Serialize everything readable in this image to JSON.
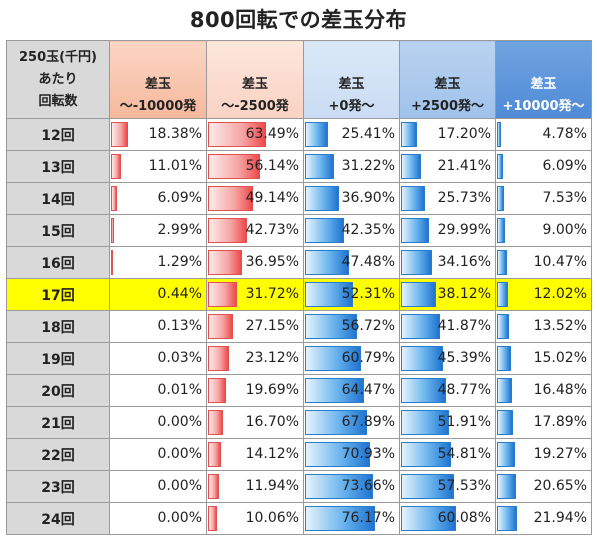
{
  "title": "800回転での差玉分布",
  "colors": {
    "negative_bar": "#ee4a4a",
    "positive_bar": "#1f74d0",
    "highlight_row": "#ffff00",
    "header_gray": "#d9d9d9"
  },
  "chart_data": {
    "type": "table",
    "title": "800回転での差玉分布",
    "row_header": [
      "250玉(千円)",
      "あたり",
      "回転数"
    ],
    "columns": [
      {
        "line1": "差玉",
        "line2": "～-10000発",
        "bar": "red"
      },
      {
        "line1": "差玉",
        "line2": "～-2500発",
        "bar": "red"
      },
      {
        "line1": "差玉",
        "line2": "+0発～",
        "bar": "blue"
      },
      {
        "line1": "差玉",
        "line2": "+2500発～",
        "bar": "blue"
      },
      {
        "line1": "差玉",
        "line2": "+10000発～",
        "bar": "blue"
      }
    ],
    "highlighted_row": "17回",
    "rows": [
      {
        "label": "12回",
        "values": [
          18.38,
          63.49,
          25.41,
          17.2,
          4.78
        ],
        "display": [
          "18.38%",
          "63.49%",
          "25.41%",
          "17.20%",
          "4.78%"
        ]
      },
      {
        "label": "13回",
        "values": [
          11.01,
          56.14,
          31.22,
          21.41,
          6.09
        ],
        "display": [
          "11.01%",
          "56.14%",
          "31.22%",
          "21.41%",
          "6.09%"
        ]
      },
      {
        "label": "14回",
        "values": [
          6.09,
          49.14,
          36.9,
          25.73,
          7.53
        ],
        "display": [
          "6.09%",
          "49.14%",
          "36.90%",
          "25.73%",
          "7.53%"
        ]
      },
      {
        "label": "15回",
        "values": [
          2.99,
          42.73,
          42.35,
          29.99,
          9.0
        ],
        "display": [
          "2.99%",
          "42.73%",
          "42.35%",
          "29.99%",
          "9.00%"
        ]
      },
      {
        "label": "16回",
        "values": [
          1.29,
          36.95,
          47.48,
          34.16,
          10.47
        ],
        "display": [
          "1.29%",
          "36.95%",
          "47.48%",
          "34.16%",
          "10.47%"
        ]
      },
      {
        "label": "17回",
        "values": [
          0.44,
          31.72,
          52.31,
          38.12,
          12.02
        ],
        "display": [
          "0.44%",
          "31.72%",
          "52.31%",
          "38.12%",
          "12.02%"
        ]
      },
      {
        "label": "18回",
        "values": [
          0.13,
          27.15,
          56.72,
          41.87,
          13.52
        ],
        "display": [
          "0.13%",
          "27.15%",
          "56.72%",
          "41.87%",
          "13.52%"
        ]
      },
      {
        "label": "19回",
        "values": [
          0.03,
          23.12,
          60.79,
          45.39,
          15.02
        ],
        "display": [
          "0.03%",
          "23.12%",
          "60.79%",
          "45.39%",
          "15.02%"
        ]
      },
      {
        "label": "20回",
        "values": [
          0.01,
          19.69,
          64.47,
          48.77,
          16.48
        ],
        "display": [
          "0.01%",
          "19.69%",
          "64.47%",
          "48.77%",
          "16.48%"
        ]
      },
      {
        "label": "21回",
        "values": [
          0.0,
          16.7,
          67.89,
          51.91,
          17.89
        ],
        "display": [
          "0.00%",
          "16.70%",
          "67.89%",
          "51.91%",
          "17.89%"
        ]
      },
      {
        "label": "22回",
        "values": [
          0.0,
          14.12,
          70.93,
          54.81,
          19.27
        ],
        "display": [
          "0.00%",
          "14.12%",
          "70.93%",
          "54.81%",
          "19.27%"
        ]
      },
      {
        "label": "23回",
        "values": [
          0.0,
          11.94,
          73.66,
          57.53,
          20.65
        ],
        "display": [
          "0.00%",
          "11.94%",
          "73.66%",
          "57.53%",
          "20.65%"
        ]
      },
      {
        "label": "24回",
        "values": [
          0.0,
          10.06,
          76.17,
          60.08,
          21.94
        ],
        "display": [
          "0.00%",
          "10.06%",
          "76.17%",
          "60.08%",
          "21.94%"
        ]
      }
    ]
  }
}
